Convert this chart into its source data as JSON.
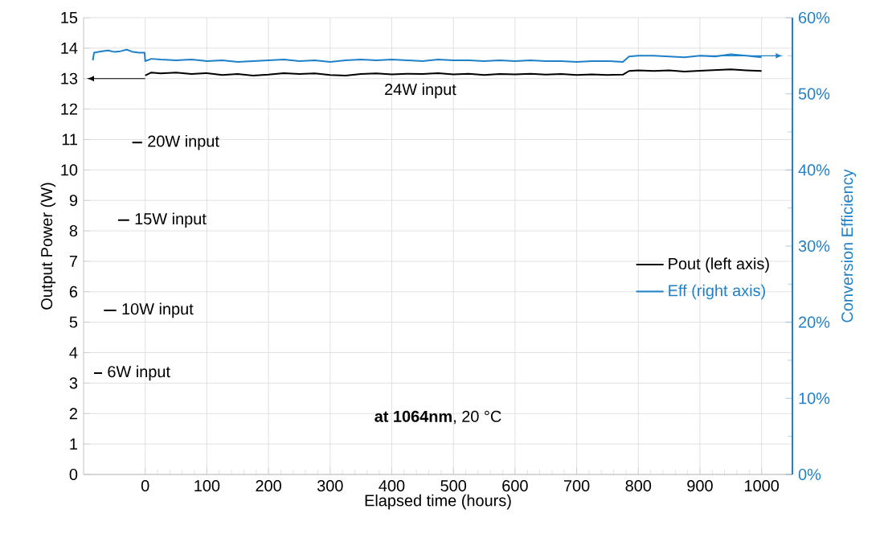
{
  "chart_data": {
    "type": "line",
    "xlabel": "Elapsed time (hours)",
    "ylabel": "Output Power (W)",
    "y2label": "Conversion Efficiency",
    "xlim": [
      -100,
      1050
    ],
    "xticks": [
      0,
      100,
      200,
      300,
      400,
      500,
      600,
      700,
      800,
      900,
      1000
    ],
    "ylim": [
      0,
      15
    ],
    "yticks": [
      0,
      1,
      2,
      3,
      4,
      5,
      6,
      7,
      8,
      9,
      10,
      11,
      12,
      13,
      14,
      15
    ],
    "y2lim": [
      0,
      60
    ],
    "y2ticks": [
      {
        "value": 0,
        "label": "0%"
      },
      {
        "value": 10,
        "label": "10%"
      },
      {
        "value": 20,
        "label": "20%"
      },
      {
        "value": 30,
        "label": "30%"
      },
      {
        "value": 40,
        "label": "40%"
      },
      {
        "value": 50,
        "label": "50%"
      },
      {
        "value": 60,
        "label": "60%"
      }
    ],
    "grid": true,
    "legend": "right",
    "series": [
      {
        "name": "Pout (left axis)",
        "color": "#000000",
        "x": [
          -83,
          -70,
          -68,
          -67,
          -47,
          -45,
          -44,
          -26,
          -24,
          -21,
          -5,
          -3,
          0,
          10,
          25,
          50,
          75,
          100,
          125,
          150,
          175,
          200,
          225,
          250,
          275,
          300,
          325,
          350,
          375,
          400,
          425,
          450,
          475,
          500,
          525,
          550,
          575,
          600,
          625,
          650,
          675,
          700,
          725,
          750,
          775,
          785,
          800,
          825,
          850,
          875,
          900,
          925,
          950,
          975,
          1000
        ],
        "values": [
          3.33,
          3.33,
          null,
          5.39,
          5.39,
          null,
          8.35,
          8.35,
          null,
          10.9,
          10.9,
          null,
          13.1,
          13.2,
          13.17,
          13.2,
          13.15,
          13.18,
          13.12,
          13.15,
          13.1,
          13.13,
          13.18,
          13.15,
          13.17,
          13.12,
          13.1,
          13.15,
          13.17,
          13.14,
          13.16,
          13.15,
          13.18,
          13.14,
          13.16,
          13.12,
          13.15,
          13.14,
          13.16,
          13.13,
          13.15,
          13.12,
          13.14,
          13.12,
          13.13,
          13.25,
          13.27,
          13.25,
          13.27,
          13.23,
          13.26,
          13.28,
          13.3,
          13.27,
          13.25
        ]
      },
      {
        "name": "Eff (right axis)",
        "color": "#1f80c8",
        "axis": "y2",
        "x": [
          -85,
          -83,
          -70,
          -60,
          -50,
          -40,
          -30,
          -20,
          -10,
          -1,
          0,
          10,
          25,
          50,
          75,
          100,
          125,
          150,
          175,
          200,
          225,
          250,
          275,
          300,
          325,
          350,
          375,
          400,
          425,
          450,
          475,
          500,
          525,
          550,
          575,
          600,
          625,
          650,
          675,
          700,
          725,
          750,
          775,
          785,
          800,
          825,
          850,
          875,
          900,
          925,
          950,
          975,
          1000
        ],
        "values": [
          54.4,
          55.4,
          55.6,
          55.7,
          55.5,
          55.6,
          55.8,
          55.5,
          55.4,
          55.4,
          54.3,
          54.6,
          54.5,
          54.4,
          54.5,
          54.3,
          54.4,
          54.2,
          54.3,
          54.4,
          54.5,
          54.3,
          54.4,
          54.2,
          54.4,
          54.5,
          54.4,
          54.5,
          54.4,
          54.3,
          54.5,
          54.4,
          54.4,
          54.3,
          54.4,
          54.3,
          54.4,
          54.3,
          54.3,
          54.2,
          54.3,
          54.3,
          54.2,
          54.9,
          55.0,
          55.0,
          54.9,
          54.8,
          55.0,
          54.9,
          55.2,
          55.0,
          54.8
        ]
      }
    ],
    "annotations": [
      "24W input",
      {
        "text": "20W input",
        "x": -5,
        "y": 10.9
      },
      {
        "text": "15W input",
        "x": -26,
        "y": 8.35
      },
      {
        "text": "10W input",
        "x": -47,
        "y": 5.39
      },
      {
        "text": "6W input",
        "x": -70,
        "y": 3.33
      },
      "**at 1064nm**, 20 °C"
    ]
  }
}
